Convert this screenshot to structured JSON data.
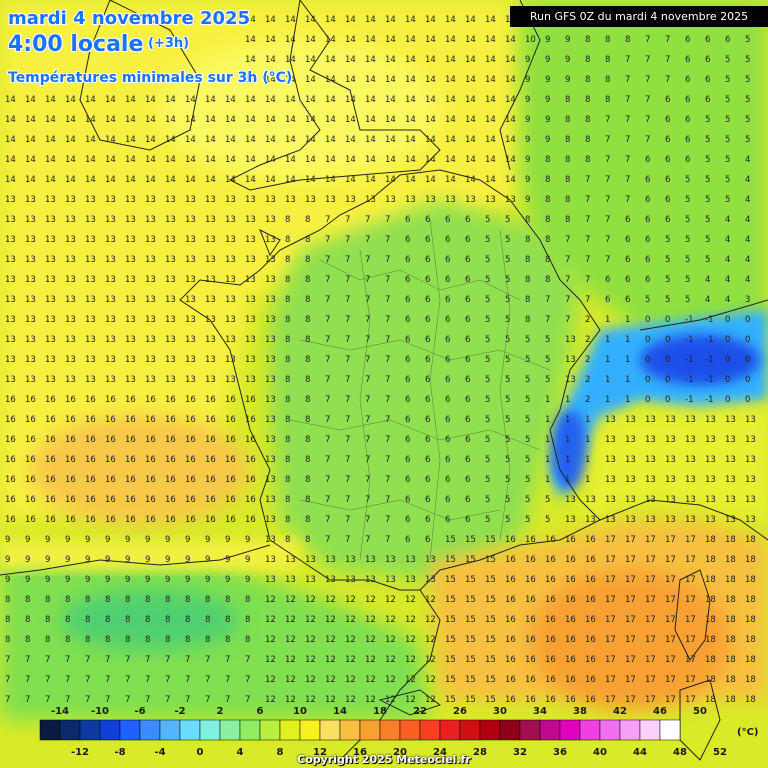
{
  "header": {
    "date": "mardi 4 novembre 2025",
    "time": "4:00 locale",
    "offset": "(+3h)",
    "subtitle": "Températures minimales sur 3h (°C)"
  },
  "run_banner": "Run GFS 0Z du mardi 4 novembre 2025",
  "copyright": "Copyright 2025 Meteociel.fr",
  "legend": {
    "unit": "(°C)",
    "top_labels": [
      "-14",
      "-10",
      "-6",
      "-2",
      "2",
      "6",
      "10",
      "14",
      "18",
      "22",
      "26",
      "30",
      "34",
      "38",
      "42",
      "46",
      "50"
    ],
    "bottom_labels": [
      "-12",
      "-8",
      "-4",
      "0",
      "4",
      "8",
      "12",
      "16",
      "20",
      "24",
      "28",
      "32",
      "36",
      "40",
      "44",
      "48",
      "52"
    ],
    "colors": [
      "#0a1a40",
      "#0b2a6e",
      "#0c3aa0",
      "#1040d8",
      "#2060ff",
      "#3a8cff",
      "#55b4ff",
      "#6adcff",
      "#80f0e0",
      "#8cf0a0",
      "#90ee60",
      "#b8f040",
      "#e0f020",
      "#f8f020",
      "#f8e060",
      "#f8c040",
      "#f8a030",
      "#f88028",
      "#f86020",
      "#f84020",
      "#e82020",
      "#d01010",
      "#b00010",
      "#900018",
      "#a01050",
      "#c00890",
      "#e000c0",
      "#f040e0",
      "#f070f0",
      "#f8a0f8",
      "#fcd0fc",
      "#ffffff"
    ]
  },
  "grid_values_sample": {
    "row_14": [
      "14",
      "14",
      "14",
      "14",
      "14",
      "14",
      "14",
      "14",
      "14",
      "14",
      "14",
      "14",
      "14",
      "14",
      "13",
      "13",
      "13",
      "13",
      "14",
      "13"
    ]
  }
}
